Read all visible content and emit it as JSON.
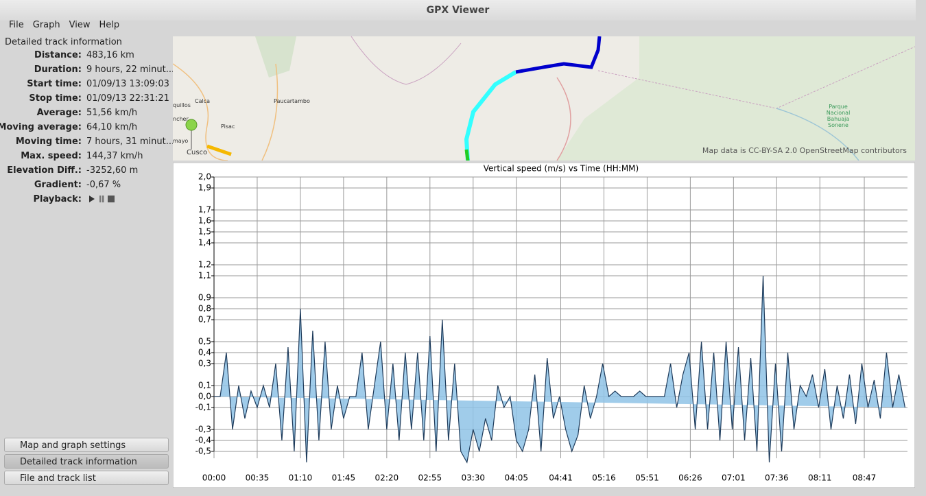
{
  "window": {
    "title": "GPX Viewer"
  },
  "menu": [
    "File",
    "Graph",
    "View",
    "Help"
  ],
  "track_info": {
    "heading": "Detailed track information",
    "rows": [
      [
        "Distance:",
        "483,16 km"
      ],
      [
        "Duration:",
        "9 hours, 22 minut..."
      ],
      [
        "Start time:",
        "01/09/13 13:09:03"
      ],
      [
        "Stop time:",
        "01/09/13 22:31:21"
      ],
      [
        "Average:",
        "51,56 km/h"
      ],
      [
        "Moving average:",
        "64,10 km/h"
      ],
      [
        "Moving time:",
        "7 hours, 31 minut..."
      ],
      [
        "Max. speed:",
        "144,37 km/h"
      ],
      [
        "Elevation Diff.:",
        "-3252,60 m"
      ],
      [
        "Gradient:",
        "-0,67 %"
      ]
    ],
    "playback": "Playback:"
  },
  "map": {
    "places": [
      "Calca",
      "Paucartambo",
      "quillos",
      "ncher",
      "Pisac",
      "mayo",
      "Cusco"
    ],
    "park": [
      "Parque",
      "Nacional",
      "Bahuaja",
      "Sonene"
    ],
    "attribution": "Map data is CC-BY-SA 2.0 OpenStreetMap contributors"
  },
  "panels": [
    "Map and graph settings",
    "Detailed track information",
    "File and track list"
  ],
  "chart_data": {
    "type": "area",
    "title": "Vertical speed (m/s) vs Time (HH:MM)",
    "color": "#1d3a5a",
    "fill": "#8fc3e6",
    "grid": true,
    "xlim": [
      0,
      562
    ],
    "ylim": [
      -0.5,
      2.0
    ],
    "xticks": [
      {
        "value": 0,
        "label": "00:00"
      },
      {
        "value": 35,
        "label": "00:35"
      },
      {
        "value": 70,
        "label": "01:10"
      },
      {
        "value": 105,
        "label": "01:45"
      },
      {
        "value": 140,
        "label": "02:20"
      },
      {
        "value": 175,
        "label": "02:55"
      },
      {
        "value": 210,
        "label": "03:30"
      },
      {
        "value": 245,
        "label": "04:05"
      },
      {
        "value": 281,
        "label": "04:41"
      },
      {
        "value": 316,
        "label": "05:16"
      },
      {
        "value": 351,
        "label": "05:51"
      },
      {
        "value": 386,
        "label": "06:26"
      },
      {
        "value": 421,
        "label": "07:01"
      },
      {
        "value": 456,
        "label": "07:36"
      },
      {
        "value": 491,
        "label": "08:11"
      },
      {
        "value": 527,
        "label": "08:47"
      }
    ],
    "yticks": [
      {
        "value": 2.0,
        "label": "2,0"
      },
      {
        "value": 1.9,
        "label": "1,9"
      },
      {
        "value": 1.7,
        "label": "1,7"
      },
      {
        "value": 1.6,
        "label": "1,6"
      },
      {
        "value": 1.5,
        "label": "1,5"
      },
      {
        "value": 1.4,
        "label": "1,4"
      },
      {
        "value": 1.2,
        "label": "1,2"
      },
      {
        "value": 1.1,
        "label": "1,1"
      },
      {
        "value": 0.9,
        "label": "0,9"
      },
      {
        "value": 0.8,
        "label": "0,8"
      },
      {
        "value": 0.7,
        "label": "0,7"
      },
      {
        "value": 0.5,
        "label": "0,5"
      },
      {
        "value": 0.4,
        "label": "0,4"
      },
      {
        "value": 0.3,
        "label": "0,3"
      },
      {
        "value": 0.1,
        "label": "0,1"
      },
      {
        "value": 0.0,
        "label": "0,0"
      },
      {
        "value": -0.1,
        "label": "-0,1"
      },
      {
        "value": -0.3,
        "label": "-0,3"
      },
      {
        "value": -0.4,
        "label": "-0,4"
      },
      {
        "value": -0.5,
        "label": "-0,5"
      }
    ],
    "x": [
      0,
      5,
      10,
      15,
      20,
      25,
      30,
      35,
      40,
      45,
      50,
      55,
      60,
      65,
      70,
      75,
      80,
      85,
      90,
      95,
      100,
      105,
      110,
      115,
      120,
      125,
      130,
      135,
      140,
      145,
      150,
      155,
      160,
      165,
      170,
      175,
      180,
      185,
      190,
      195,
      200,
      205,
      210,
      215,
      220,
      225,
      230,
      235,
      240,
      245,
      250,
      255,
      260,
      265,
      270,
      275,
      280,
      285,
      290,
      295,
      300,
      305,
      310,
      315,
      320,
      325,
      330,
      335,
      340,
      345,
      350,
      355,
      360,
      365,
      370,
      375,
      380,
      385,
      390,
      395,
      400,
      405,
      410,
      415,
      420,
      425,
      430,
      435,
      440,
      445,
      450,
      455,
      460,
      465,
      470,
      475,
      480,
      485,
      490,
      495,
      500,
      505,
      510,
      515,
      520,
      525,
      530,
      535,
      540,
      545,
      550,
      555,
      560
    ],
    "values": [
      0,
      0,
      0.4,
      -0.3,
      0.1,
      -0.2,
      0.05,
      -0.1,
      0.1,
      -0.1,
      0.3,
      -0.4,
      0.45,
      -0.5,
      0.8,
      -0.6,
      0.6,
      -0.4,
      0.5,
      -0.3,
      0.1,
      -0.2,
      0,
      0,
      0.4,
      -0.3,
      0.1,
      0.5,
      -0.3,
      0.3,
      -0.4,
      0.4,
      -0.3,
      0.4,
      -0.4,
      0.55,
      -0.5,
      0.7,
      -0.4,
      0.3,
      -0.5,
      -0.6,
      -0.3,
      -0.5,
      -0.2,
      -0.4,
      0.1,
      -0.1,
      0,
      -0.4,
      -0.5,
      -0.3,
      0.2,
      -0.5,
      0.35,
      -0.2,
      0,
      -0.3,
      -0.5,
      -0.35,
      0.1,
      -0.2,
      0,
      0.3,
      0,
      0.05,
      0,
      0,
      0,
      0.05,
      0,
      0,
      0,
      0,
      0.3,
      -0.1,
      0.2,
      0.4,
      -0.3,
      0.5,
      -0.3,
      0.4,
      -0.4,
      0.5,
      -0.3,
      0.45,
      -0.4,
      0.35,
      -0.5,
      1.1,
      -0.6,
      0.3,
      -0.5,
      0.4,
      -0.3,
      0.1,
      0,
      0.2,
      -0.1,
      0.25,
      -0.3,
      0.1,
      -0.2,
      0.2,
      -0.25,
      0.3,
      -0.1,
      0.15,
      -0.2,
      0.4,
      -0.1,
      0.2,
      -0.1
    ]
  }
}
